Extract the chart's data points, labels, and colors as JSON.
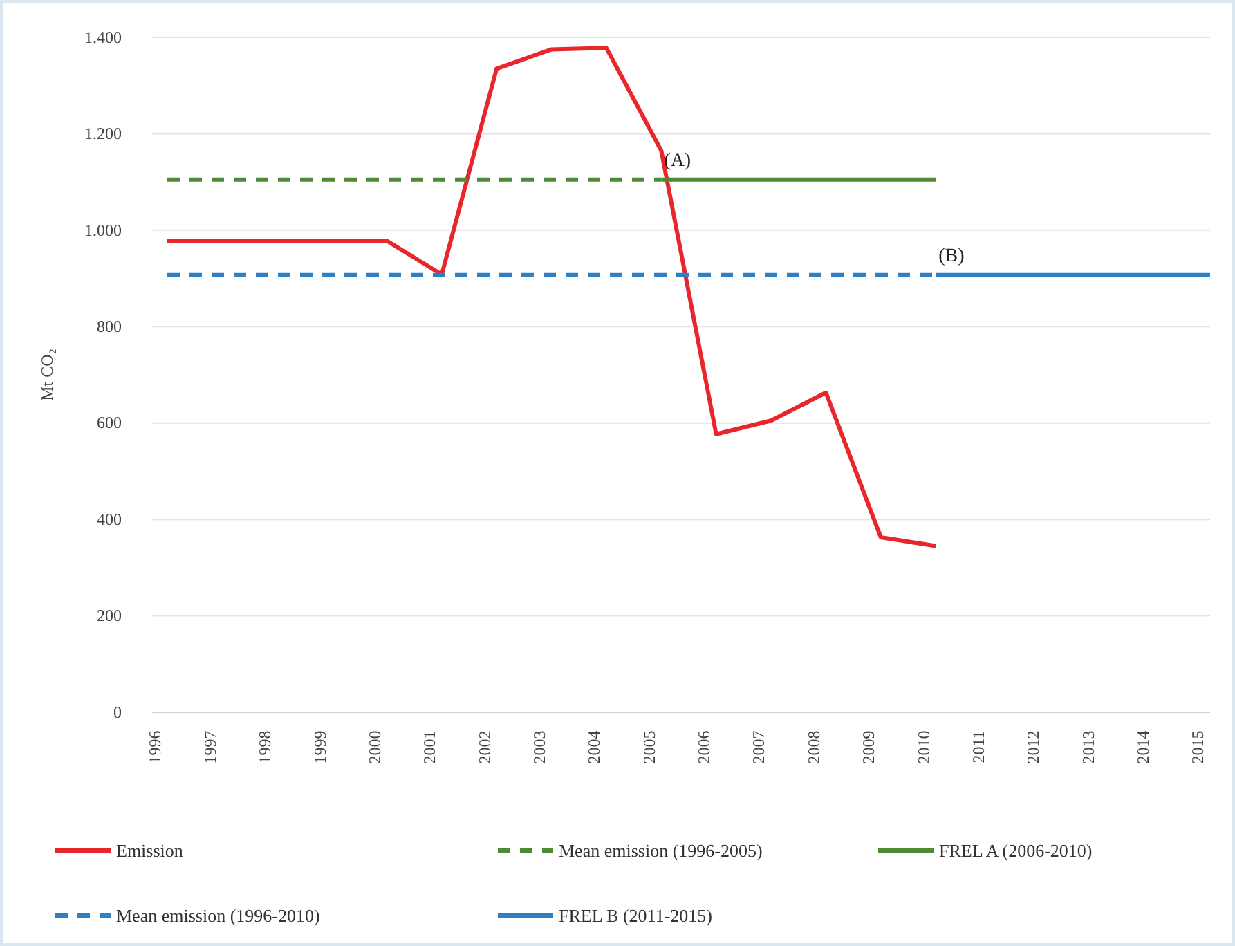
{
  "chart_data": {
    "type": "line",
    "ylabel": "Mt CO₂",
    "categories": [
      "1996",
      "1997",
      "1998",
      "1999",
      "2000",
      "2001",
      "2002",
      "2003",
      "2004",
      "2005",
      "2006",
      "2007",
      "2008",
      "2009",
      "2010",
      "2011",
      "2012",
      "2013",
      "2014",
      "2015"
    ],
    "series": [
      {
        "name": "Emission",
        "color": "#e8262b",
        "line_style": "solid",
        "values": [
          978,
          978,
          978,
          978,
          978,
          908,
          1335,
          1375,
          1378,
          1165,
          577,
          605,
          663,
          363,
          345,
          null,
          null,
          null,
          null,
          null
        ]
      },
      {
        "name": "Mean emission (1996-2005)",
        "color": "#4e8a35",
        "line_style": "dashed",
        "values": [
          1105,
          1105,
          1105,
          1105,
          1105,
          1105,
          1105,
          1105,
          1105,
          1105,
          null,
          null,
          null,
          null,
          null,
          null,
          null,
          null,
          null,
          null
        ]
      },
      {
        "name": "FREL A (2006-2010)",
        "color": "#4e8a35",
        "line_style": "solid",
        "values": [
          null,
          null,
          null,
          null,
          null,
          null,
          null,
          null,
          null,
          1105,
          1105,
          1105,
          1105,
          1105,
          1105,
          null,
          null,
          null,
          null,
          null
        ]
      },
      {
        "name": "Mean emission (1996-2010)",
        "color": "#2f7fc4",
        "line_style": "dashed",
        "values": [
          907,
          907,
          907,
          907,
          907,
          907,
          907,
          907,
          907,
          907,
          907,
          907,
          907,
          907,
          907,
          null,
          null,
          null,
          null,
          null
        ]
      },
      {
        "name": "FREL B (2011-2015)",
        "color": "#2f7fc4",
        "line_style": "solid",
        "values": [
          null,
          null,
          null,
          null,
          null,
          null,
          null,
          null,
          null,
          null,
          null,
          null,
          null,
          null,
          907,
          907,
          907,
          907,
          907,
          907
        ]
      }
    ],
    "ylim": [
      0,
      1400
    ],
    "yticks": [
      0,
      200,
      400,
      600,
      800,
      {
        "value": 1000,
        "label": "1.000"
      },
      {
        "value": 1200,
        "label": "1.200"
      },
      {
        "value": 1400,
        "label": "1.400"
      }
    ],
    "grid": "y",
    "legend": "bottom",
    "marker": "none",
    "annotations": [
      {
        "text": "(A)",
        "x": "2005",
        "y": 1105
      },
      {
        "text": "(B)",
        "x": "2010",
        "y": 907
      }
    ]
  }
}
